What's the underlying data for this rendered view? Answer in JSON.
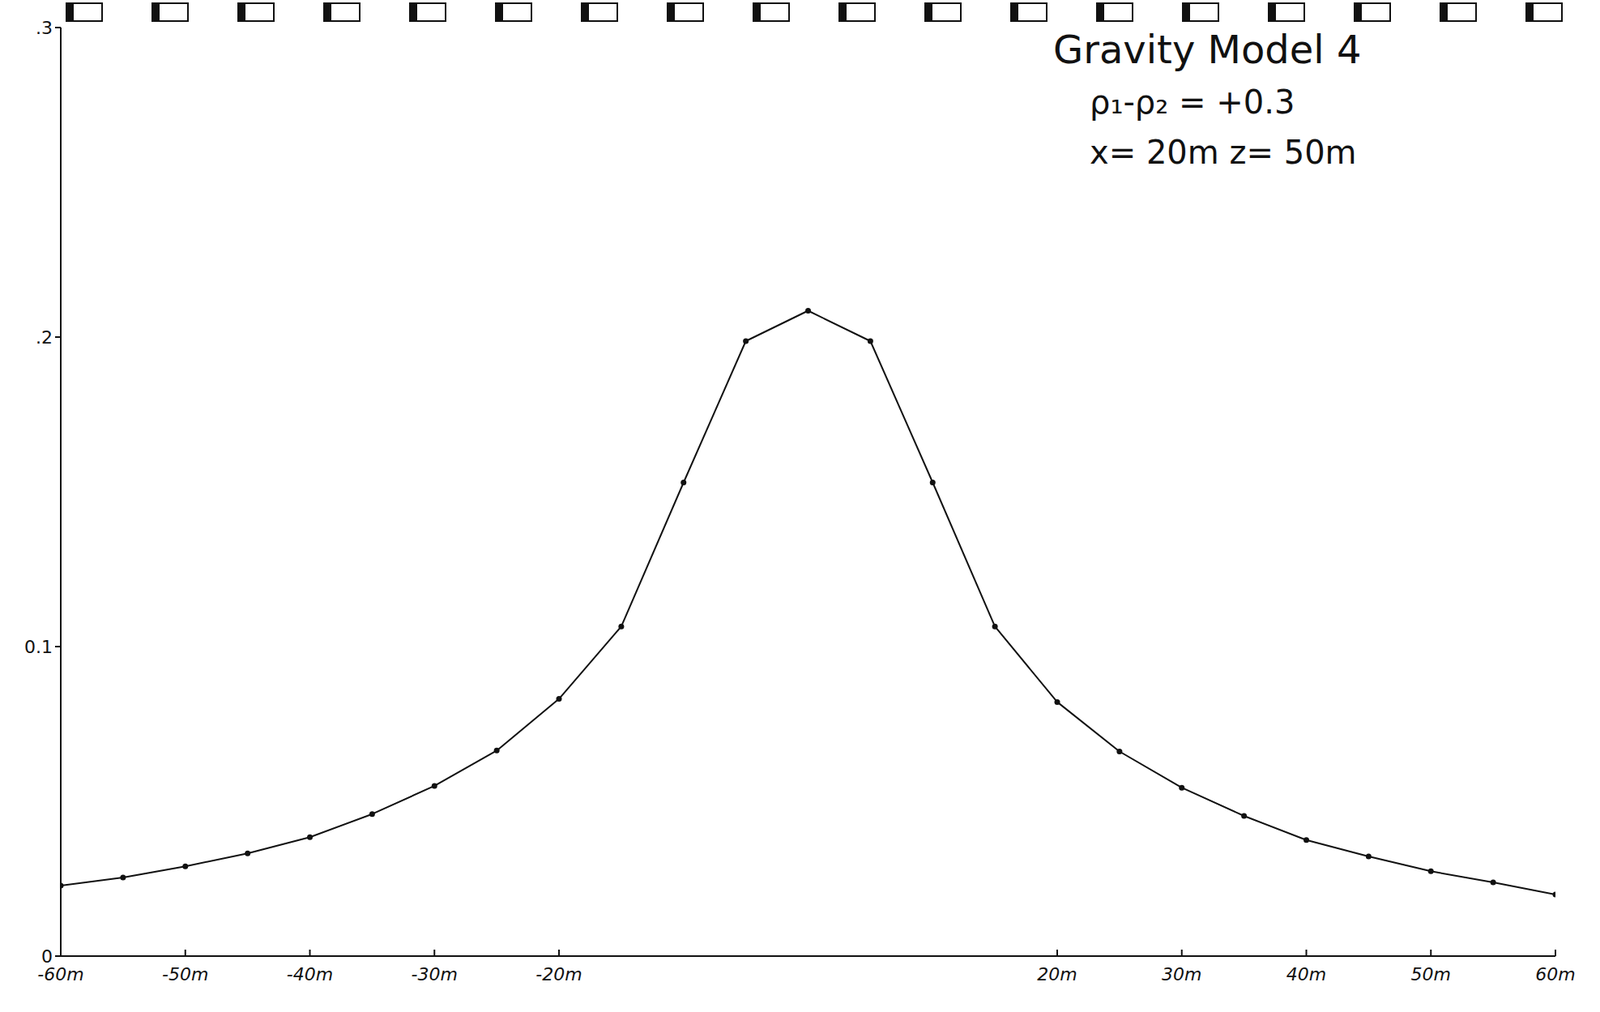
{
  "chart_data": {
    "type": "line",
    "title": "Gravity Model 4",
    "annotations": [
      "ρ₁-ρ₂ = +0.3",
      "x= 20m   z= 50m"
    ],
    "x": [
      -60,
      -55,
      -50,
      -45,
      -40,
      -35,
      -30,
      -25,
      -20,
      -15,
      -10,
      -5,
      0,
      5,
      10,
      15,
      20,
      25,
      30,
      35,
      40,
      45,
      50,
      55,
      60
    ],
    "values": [
      0.0228,
      0.0254,
      0.029,
      0.0332,
      0.0384,
      0.0459,
      0.055,
      0.0664,
      0.0831,
      0.1065,
      0.153,
      0.1987,
      0.2085,
      0.1987,
      0.153,
      0.1065,
      0.0821,
      0.0661,
      0.0544,
      0.0453,
      0.0375,
      0.0322,
      0.0274,
      0.0238,
      0.0199
    ],
    "color": "#111111",
    "marker": "dot",
    "xlim": [
      -60,
      60
    ],
    "xticks": [
      {
        "value": -60,
        "label": "-60m"
      },
      {
        "value": -50,
        "label": "-50m"
      },
      {
        "value": -40,
        "label": "-40m"
      },
      {
        "value": -30,
        "label": "-30m"
      },
      {
        "value": -20,
        "label": "-20m"
      },
      {
        "value": 20,
        "label": "20m"
      },
      {
        "value": 30,
        "label": "30m"
      },
      {
        "value": 40,
        "label": "40m"
      },
      {
        "value": 50,
        "label": "50m"
      },
      {
        "value": 60,
        "label": "60m"
      }
    ],
    "ylim": [
      0,
      0.3
    ],
    "yticks": [
      0,
      0.1,
      {
        "value": 0.2,
        "label": ".2"
      },
      {
        "value": 0.3,
        "label": ".3"
      }
    ],
    "grid": false
  }
}
